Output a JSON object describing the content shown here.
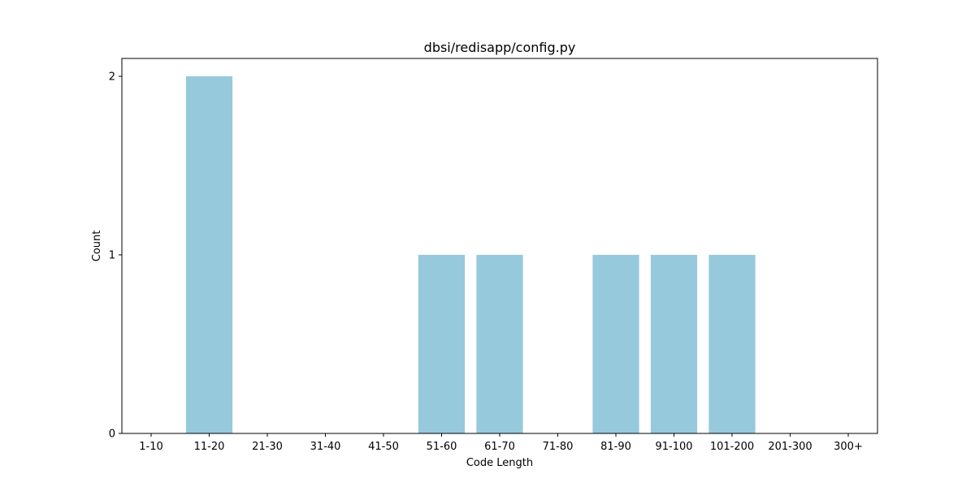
{
  "chart_data": {
    "type": "bar",
    "title": "dbsi/redisapp/config.py",
    "xlabel": "Code Length",
    "ylabel": "Count",
    "categories": [
      "1-10",
      "11-20",
      "21-30",
      "31-40",
      "41-50",
      "51-60",
      "61-70",
      "71-80",
      "81-90",
      "91-100",
      "101-200",
      "201-300",
      "300+"
    ],
    "values": [
      0,
      2,
      0,
      0,
      0,
      1,
      1,
      0,
      1,
      1,
      1,
      0,
      0
    ],
    "ylim": [
      0,
      2.1
    ],
    "yticks": [
      0,
      1,
      2
    ],
    "bar_color": "#96c9dc",
    "grid": false,
    "legend": "none"
  }
}
